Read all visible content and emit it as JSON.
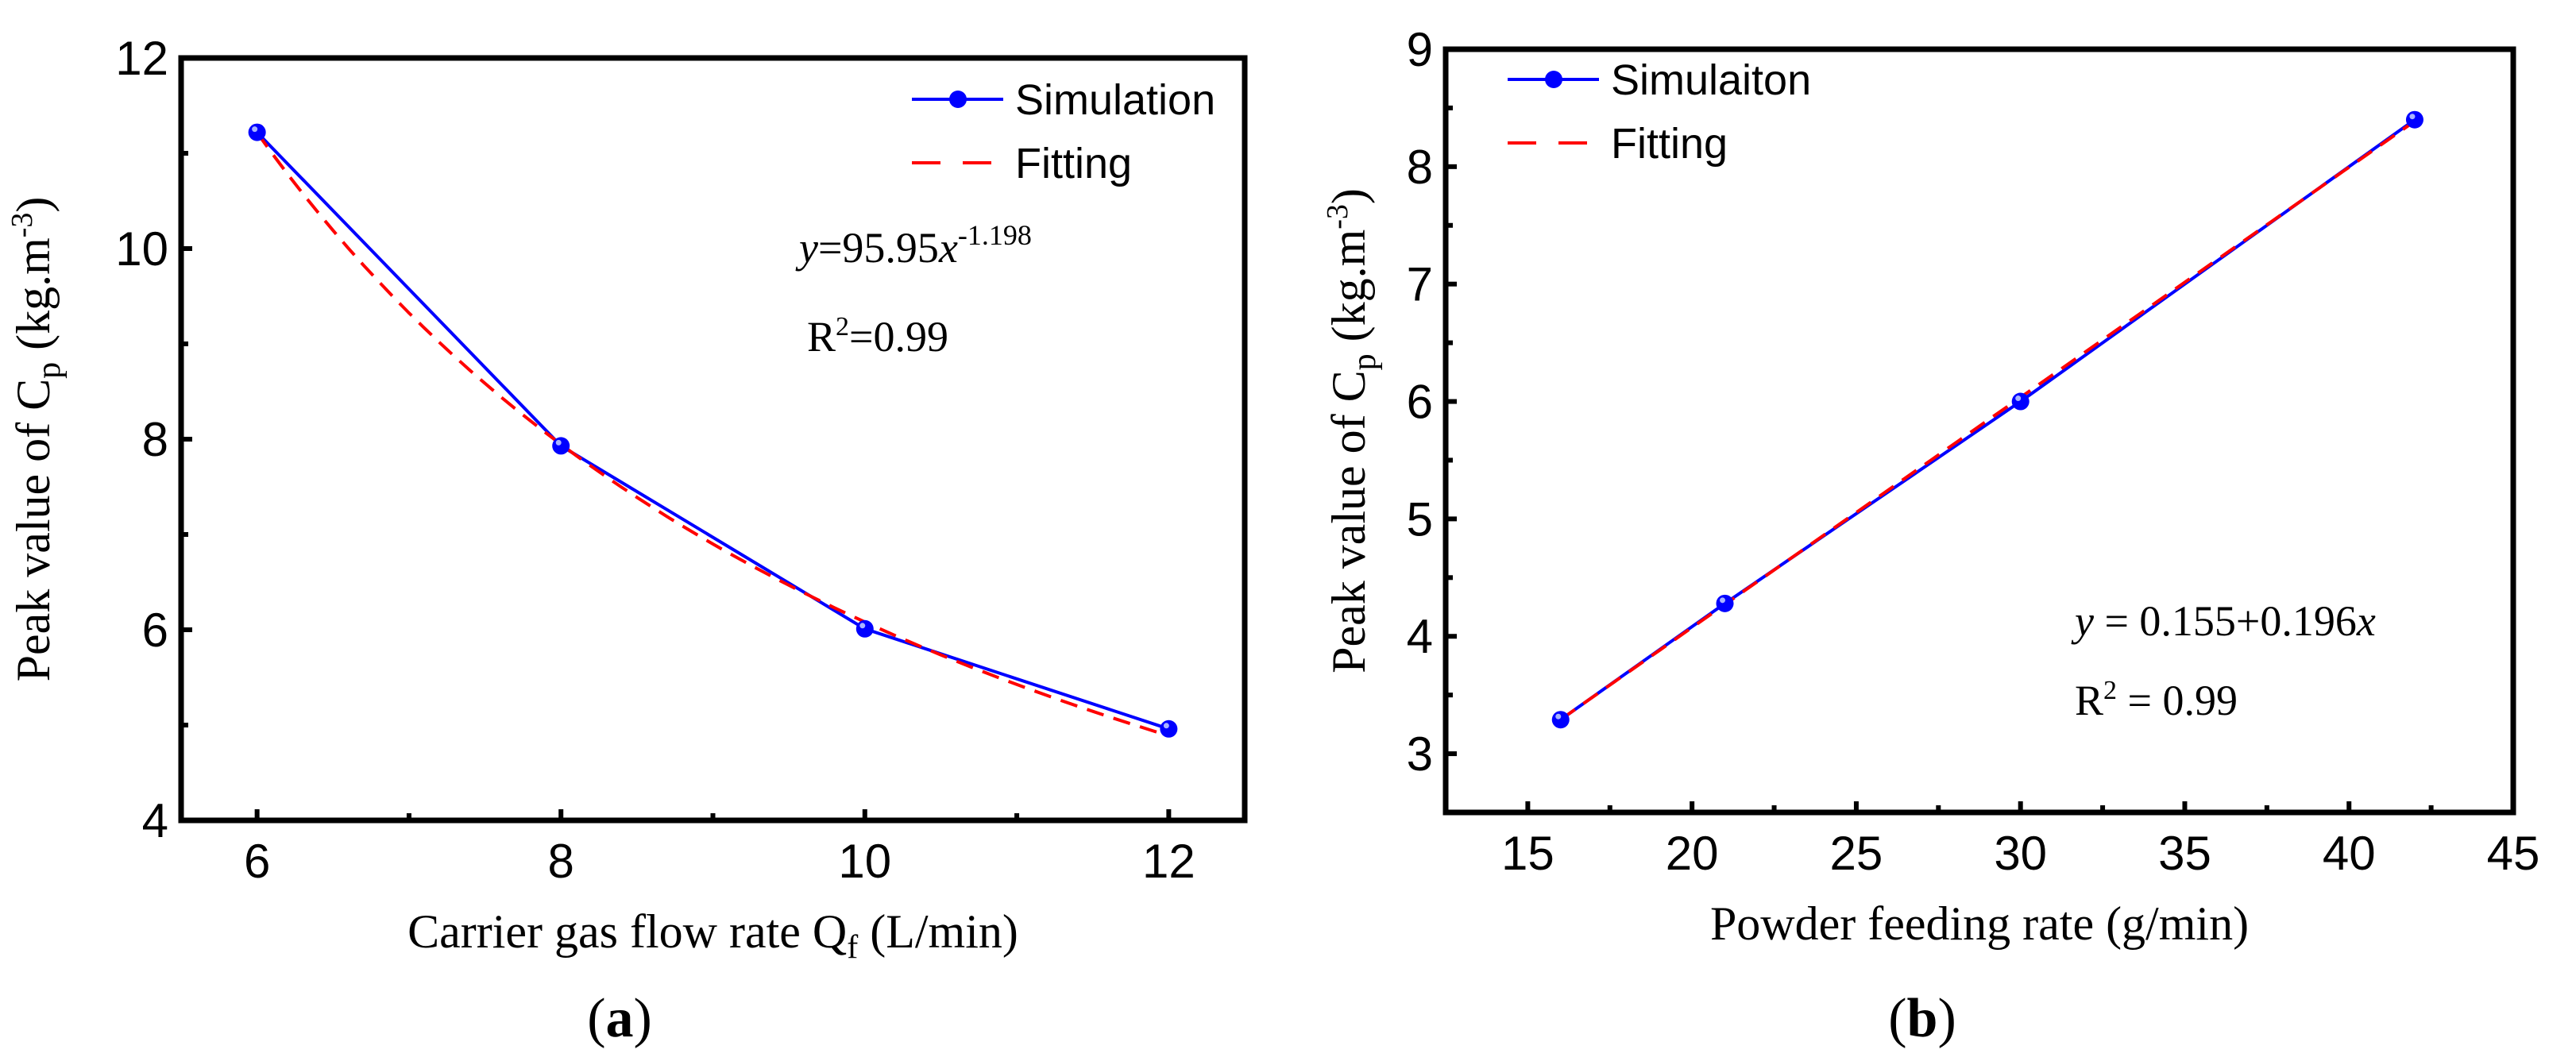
{
  "colors": {
    "simulation": "#0000ff",
    "fitting": "#ff0000",
    "axis": "#000000"
  },
  "chart_data": [
    {
      "type": "line",
      "panel_label": "(a)",
      "panel_letter": "a",
      "xlabel": "Carrier gas flow rate Q",
      "xlabel_sub": "f",
      "xlabel_unit": " (L/min)",
      "ylabel": "Peak value of C",
      "ylabel_sub": "p",
      "ylabel_unit": " (kg.m",
      "ylabel_sup": "-3",
      "ylabel_close": ")",
      "xlim": [
        5.5,
        12.5
      ],
      "ylim": [
        4,
        12
      ],
      "xticks": [
        6,
        8,
        10,
        12
      ],
      "yticks": [
        4,
        6,
        8,
        10,
        12
      ],
      "x": [
        6,
        8,
        10,
        12
      ],
      "series": [
        {
          "name": "Simulation",
          "values": [
            11.22,
            7.93,
            6.01,
            4.96
          ],
          "style": "solid-marker"
        },
        {
          "name": "Fitting",
          "values": [
            11.22,
            7.96,
            6.07,
            4.88
          ],
          "style": "dashed",
          "model": "power",
          "a": 95.95,
          "b": -1.198
        }
      ],
      "legend_placement": "top-right",
      "annotations": {
        "eq_y": "y",
        "eq_mid": "=95.95",
        "eq_x": "x",
        "eq_exp": "-1.198",
        "r2_r": "R",
        "r2_sup": "2",
        "r2_val": "=0.99"
      }
    },
    {
      "type": "line",
      "panel_label": "(b)",
      "panel_letter": "b",
      "xlabel": "Powder feeding rate (g/min)",
      "ylabel": "Peak value of C",
      "ylabel_sub": "p",
      "ylabel_unit": " (kg.m",
      "ylabel_sup": "-3",
      "ylabel_close": ")",
      "xlim": [
        12.5,
        45
      ],
      "ylim": [
        2.5,
        9
      ],
      "xticks": [
        15,
        20,
        25,
        30,
        35,
        40,
        45
      ],
      "yticks": [
        3,
        4,
        5,
        6,
        7,
        8,
        9
      ],
      "x": [
        16,
        21,
        30,
        42
      ],
      "series": [
        {
          "name": "Simulaiton",
          "values": [
            3.29,
            4.28,
            6.0,
            8.4
          ],
          "style": "solid-marker"
        },
        {
          "name": "Fitting",
          "values": [
            3.29,
            4.27,
            6.04,
            8.39
          ],
          "style": "dashed",
          "model": "linear",
          "a": 0.155,
          "b": 0.196
        }
      ],
      "legend_placement": "top-left",
      "annotations": {
        "eq_y": "y",
        "eq_mid": " = 0.155+0.196",
        "eq_x": "x",
        "r2_r": "R",
        "r2_sup": "2",
        "r2_val": " = 0.99"
      }
    }
  ]
}
